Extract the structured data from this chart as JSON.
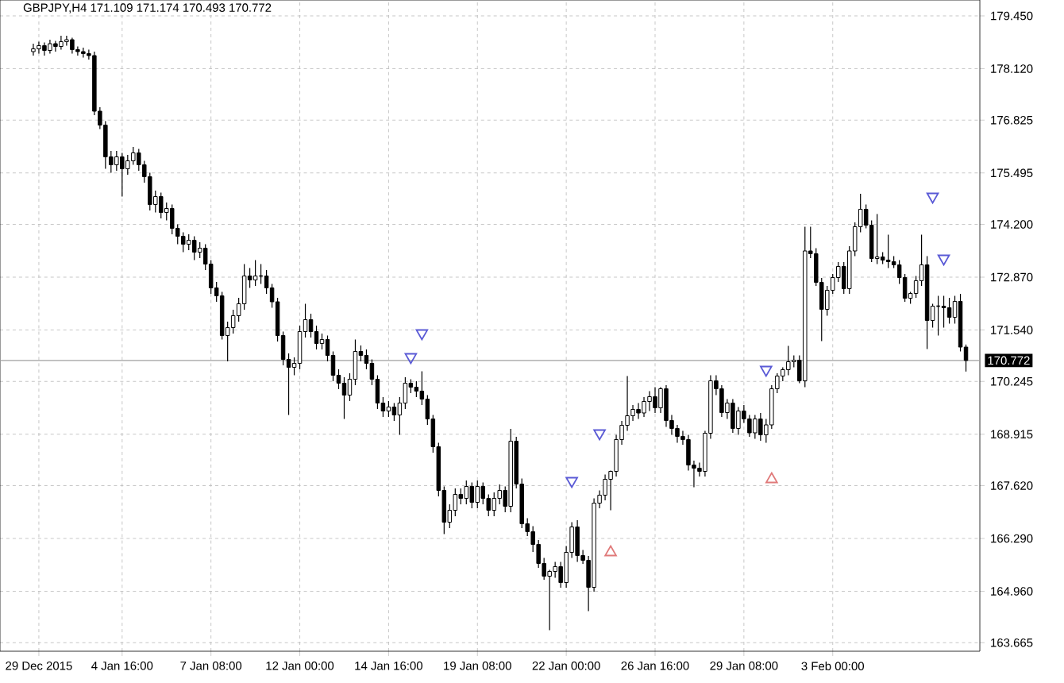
{
  "chart_data": {
    "type": "candlestick",
    "title": "GBPJPY,H4 171.109 171.174 170.493 170.772",
    "categories": [
      null,
      "29 Dec 2015",
      null,
      null,
      null,
      null,
      null,
      null,
      null,
      null,
      null,
      null,
      null,
      null,
      null,
      null,
      "4 Jan 16:00",
      null,
      null,
      null,
      null,
      null,
      null,
      null,
      null,
      null,
      null,
      null,
      null,
      null,
      null,
      null,
      "7 Jan 08:00",
      null,
      null,
      null,
      null,
      null,
      null,
      null,
      null,
      null,
      null,
      null,
      null,
      null,
      null,
      null,
      "12 Jan 00:00",
      null,
      null,
      null,
      null,
      null,
      null,
      null,
      null,
      null,
      null,
      null,
      null,
      null,
      null,
      null,
      "14 Jan 16:00",
      null,
      null,
      null,
      null,
      null,
      null,
      null,
      null,
      null,
      null,
      null,
      null,
      null,
      null,
      null,
      "19 Jan 08:00",
      null,
      null,
      null,
      null,
      null,
      null,
      null,
      null,
      null,
      null,
      null,
      null,
      null,
      null,
      null,
      "22 Jan 00:00",
      null,
      null,
      null,
      null,
      null,
      null,
      null,
      null,
      null,
      null,
      null,
      null,
      null,
      null,
      null,
      "26 Jan 16:00",
      null,
      null,
      null,
      null,
      null,
      null,
      null,
      null,
      null,
      null,
      null,
      null,
      null,
      null,
      null,
      "29 Jan 08:00",
      null,
      null,
      null,
      null,
      null,
      null,
      null,
      null,
      null,
      null,
      null,
      null,
      null,
      null,
      null,
      "3 Feb 00:00",
      null,
      null,
      null,
      null,
      null,
      null,
      null,
      null,
      null,
      null,
      null,
      null,
      null,
      null,
      null,
      null,
      null,
      null,
      null,
      null,
      null,
      null,
      null,
      null
    ],
    "ohlc": [
      [
        178.55,
        178.75,
        178.45,
        178.62
      ],
      [
        178.62,
        178.8,
        178.5,
        178.7
      ],
      [
        178.7,
        178.78,
        178.45,
        178.58
      ],
      [
        178.58,
        178.85,
        178.5,
        178.75
      ],
      [
        178.75,
        178.82,
        178.55,
        178.68
      ],
      [
        178.68,
        178.95,
        178.6,
        178.8
      ],
      [
        178.8,
        178.95,
        178.7,
        178.85
      ],
      [
        178.85,
        178.9,
        178.5,
        178.6
      ],
      [
        178.6,
        178.68,
        178.45,
        178.55
      ],
      [
        178.55,
        178.65,
        178.4,
        178.5
      ],
      [
        178.5,
        178.6,
        178.35,
        178.45
      ],
      [
        178.45,
        178.55,
        176.95,
        177.05
      ],
      [
        177.05,
        177.15,
        176.6,
        176.7
      ],
      [
        176.7,
        176.8,
        175.6,
        175.9
      ],
      [
        175.9,
        176.05,
        175.5,
        175.7
      ],
      [
        175.7,
        176.05,
        175.55,
        175.9
      ],
      [
        175.9,
        176.0,
        174.9,
        175.6
      ],
      [
        175.6,
        175.95,
        175.45,
        175.8
      ],
      [
        175.8,
        176.15,
        175.7,
        176.0
      ],
      [
        176.0,
        176.1,
        175.55,
        175.7
      ],
      [
        175.7,
        175.8,
        175.25,
        175.4
      ],
      [
        175.4,
        175.5,
        174.55,
        174.7
      ],
      [
        174.7,
        175.05,
        174.5,
        174.9
      ],
      [
        174.9,
        175.0,
        174.35,
        174.5
      ],
      [
        174.5,
        174.75,
        174.3,
        174.6
      ],
      [
        174.6,
        174.7,
        173.95,
        174.1
      ],
      [
        174.1,
        174.2,
        173.7,
        173.9
      ],
      [
        173.9,
        174.0,
        173.5,
        173.7
      ],
      [
        173.7,
        173.95,
        173.55,
        173.8
      ],
      [
        173.8,
        173.9,
        173.3,
        173.5
      ],
      [
        173.5,
        173.75,
        173.35,
        173.6
      ],
      [
        173.6,
        173.7,
        173.05,
        173.2
      ],
      [
        173.2,
        173.3,
        172.45,
        172.6
      ],
      [
        172.6,
        172.75,
        172.25,
        172.4
      ],
      [
        172.4,
        172.5,
        171.3,
        171.4
      ],
      [
        171.4,
        171.75,
        170.75,
        171.6
      ],
      [
        171.6,
        172.05,
        171.45,
        171.9
      ],
      [
        171.9,
        172.35,
        171.75,
        172.2
      ],
      [
        172.2,
        173.2,
        172.05,
        172.9
      ],
      [
        172.9,
        173.1,
        172.6,
        172.8
      ],
      [
        172.8,
        173.3,
        172.65,
        172.9
      ],
      [
        172.9,
        173.2,
        172.7,
        172.9
      ],
      [
        172.9,
        173.05,
        172.45,
        172.6
      ],
      [
        172.6,
        172.7,
        172.1,
        172.25
      ],
      [
        172.25,
        172.35,
        171.25,
        171.4
      ],
      [
        171.4,
        171.5,
        170.65,
        170.8
      ],
      [
        170.8,
        170.95,
        169.4,
        170.6
      ],
      [
        170.6,
        170.85,
        170.4,
        170.7
      ],
      [
        170.7,
        171.65,
        170.55,
        171.5
      ],
      [
        171.5,
        172.2,
        171.35,
        171.8
      ],
      [
        171.8,
        171.95,
        171.35,
        171.5
      ],
      [
        171.5,
        171.65,
        171.05,
        171.2
      ],
      [
        171.2,
        171.45,
        171.05,
        171.3
      ],
      [
        171.3,
        171.4,
        170.75,
        170.9
      ],
      [
        170.9,
        171.0,
        170.25,
        170.4
      ],
      [
        170.4,
        170.55,
        170.05,
        170.2
      ],
      [
        170.2,
        170.35,
        169.3,
        169.9
      ],
      [
        169.9,
        170.45,
        169.75,
        170.3
      ],
      [
        170.3,
        171.3,
        170.15,
        171.0
      ],
      [
        171.0,
        171.15,
        170.75,
        170.9
      ],
      [
        170.9,
        171.05,
        170.55,
        170.7
      ],
      [
        170.7,
        170.8,
        170.15,
        170.3
      ],
      [
        170.3,
        170.4,
        169.55,
        169.7
      ],
      [
        169.7,
        169.85,
        169.35,
        169.5
      ],
      [
        169.5,
        169.75,
        169.35,
        169.6
      ],
      [
        169.6,
        169.7,
        169.25,
        169.4
      ],
      [
        169.4,
        169.85,
        168.9,
        169.7
      ],
      [
        169.7,
        170.35,
        169.55,
        170.2
      ],
      [
        170.2,
        170.3,
        169.95,
        170.1
      ],
      [
        170.1,
        170.25,
        169.85,
        170.0
      ],
      [
        170.0,
        170.5,
        169.65,
        169.8
      ],
      [
        169.8,
        169.9,
        169.15,
        169.3
      ],
      [
        169.3,
        169.4,
        168.45,
        168.6
      ],
      [
        168.6,
        168.7,
        167.35,
        167.5
      ],
      [
        167.5,
        167.6,
        166.4,
        166.7
      ],
      [
        166.7,
        167.15,
        166.55,
        167.0
      ],
      [
        167.0,
        167.55,
        166.85,
        167.4
      ],
      [
        167.4,
        167.55,
        167.15,
        167.3
      ],
      [
        167.3,
        167.75,
        167.15,
        167.6
      ],
      [
        167.6,
        167.7,
        167.05,
        167.2
      ],
      [
        167.2,
        167.75,
        167.05,
        167.6
      ],
      [
        167.6,
        167.7,
        167.15,
        167.3
      ],
      [
        167.3,
        167.4,
        166.85,
        167.0
      ],
      [
        167.0,
        167.45,
        166.85,
        167.3
      ],
      [
        167.3,
        167.65,
        167.15,
        167.5
      ],
      [
        167.5,
        167.6,
        166.95,
        167.1
      ],
      [
        167.1,
        169.05,
        166.95,
        168.74
      ],
      [
        168.74,
        168.85,
        167.55,
        167.66
      ],
      [
        167.66,
        167.8,
        166.55,
        166.66
      ],
      [
        166.66,
        166.8,
        166.35,
        166.46
      ],
      [
        166.46,
        166.6,
        165.95,
        166.14
      ],
      [
        166.14,
        166.25,
        165.55,
        165.66
      ],
      [
        165.66,
        165.8,
        165.25,
        165.34
      ],
      [
        165.34,
        165.5,
        163.98,
        165.46
      ],
      [
        165.46,
        165.7,
        165.3,
        165.58
      ],
      [
        165.58,
        165.7,
        165.05,
        165.18
      ],
      [
        165.18,
        166.1,
        165.05,
        165.94
      ],
      [
        165.94,
        166.7,
        165.8,
        166.58
      ],
      [
        166.58,
        166.75,
        165.7,
        165.86
      ],
      [
        165.86,
        166.0,
        165.65,
        165.74
      ],
      [
        165.74,
        165.85,
        164.46,
        165.06
      ],
      [
        165.06,
        167.3,
        164.95,
        167.18
      ],
      [
        167.18,
        167.5,
        167.05,
        167.38
      ],
      [
        167.38,
        167.9,
        167.25,
        167.78
      ],
      [
        167.78,
        168.0,
        167.0,
        167.98
      ],
      [
        167.98,
        168.9,
        167.85,
        168.78
      ],
      [
        168.78,
        169.25,
        168.65,
        169.14
      ],
      [
        169.14,
        170.38,
        169.0,
        169.38
      ],
      [
        169.38,
        169.65,
        169.25,
        169.54
      ],
      [
        169.54,
        169.7,
        169.3,
        169.45
      ],
      [
        169.45,
        169.85,
        169.35,
        169.74
      ],
      [
        169.74,
        170.0,
        169.5,
        169.86
      ],
      [
        169.86,
        170.1,
        169.45,
        169.58
      ],
      [
        169.58,
        170.1,
        169.45,
        170.06
      ],
      [
        170.06,
        170.15,
        169.1,
        169.26
      ],
      [
        169.26,
        169.4,
        168.9,
        169.06
      ],
      [
        169.06,
        169.15,
        168.7,
        168.86
      ],
      [
        168.86,
        169.0,
        168.65,
        168.78
      ],
      [
        168.78,
        168.9,
        168.0,
        168.14
      ],
      [
        168.14,
        168.25,
        167.58,
        168.06
      ],
      [
        168.06,
        168.2,
        167.85,
        167.98
      ],
      [
        167.98,
        169.0,
        167.85,
        168.94
      ],
      [
        168.94,
        170.4,
        168.8,
        170.26
      ],
      [
        170.26,
        170.4,
        169.9,
        170.06
      ],
      [
        170.06,
        170.15,
        169.35,
        169.46
      ],
      [
        169.46,
        169.8,
        169.3,
        169.7
      ],
      [
        169.7,
        169.8,
        168.95,
        169.06
      ],
      [
        169.06,
        169.6,
        168.9,
        169.5
      ],
      [
        169.5,
        169.65,
        169.2,
        169.3
      ],
      [
        169.3,
        169.4,
        168.85,
        168.95
      ],
      [
        168.95,
        169.4,
        168.8,
        169.3
      ],
      [
        169.3,
        169.45,
        168.75,
        168.9
      ],
      [
        168.9,
        169.3,
        168.7,
        169.15
      ],
      [
        169.15,
        170.15,
        169.05,
        170.06
      ],
      [
        170.06,
        170.45,
        169.95,
        170.38
      ],
      [
        170.38,
        170.6,
        170.25,
        170.54
      ],
      [
        170.54,
        171.14,
        170.4,
        170.74
      ],
      [
        170.74,
        170.9,
        170.6,
        170.78
      ],
      [
        170.78,
        170.9,
        170.2,
        170.26
      ],
      [
        170.26,
        174.14,
        170.1,
        173.53
      ],
      [
        173.53,
        174.14,
        173.35,
        173.46
      ],
      [
        173.46,
        173.6,
        172.65,
        172.74
      ],
      [
        172.74,
        172.85,
        171.26,
        172.06
      ],
      [
        172.06,
        172.65,
        171.9,
        172.54
      ],
      [
        172.54,
        172.95,
        172.45,
        172.86
      ],
      [
        172.86,
        173.25,
        172.75,
        173.14
      ],
      [
        173.14,
        173.25,
        172.45,
        172.58
      ],
      [
        172.58,
        173.65,
        172.45,
        173.53
      ],
      [
        173.53,
        174.25,
        173.4,
        174.14
      ],
      [
        174.14,
        174.97,
        174.0,
        174.58
      ],
      [
        174.58,
        174.7,
        174.1,
        174.18
      ],
      [
        174.18,
        174.3,
        173.25,
        173.34
      ],
      [
        173.34,
        174.46,
        173.2,
        173.38
      ],
      [
        173.38,
        173.5,
        173.2,
        173.3
      ],
      [
        173.3,
        173.94,
        173.1,
        173.26
      ],
      [
        173.26,
        173.4,
        173.1,
        173.18
      ],
      [
        173.18,
        173.3,
        172.7,
        172.86
      ],
      [
        172.86,
        172.95,
        172.25,
        172.34
      ],
      [
        172.34,
        172.5,
        172.2,
        172.46
      ],
      [
        172.46,
        172.9,
        172.35,
        172.78
      ],
      [
        172.78,
        173.94,
        172.65,
        173.18
      ],
      [
        173.18,
        173.4,
        171.06,
        171.78
      ],
      [
        171.78,
        172.2,
        171.6,
        172.14
      ],
      [
        172.14,
        172.4,
        171.4,
        172.14
      ],
      [
        172.14,
        172.4,
        171.6,
        172.1
      ],
      [
        172.1,
        172.35,
        171.7,
        171.86
      ],
      [
        171.86,
        172.4,
        171.7,
        172.26
      ],
      [
        172.26,
        172.45,
        171.0,
        171.11
      ],
      [
        171.109,
        171.174,
        170.493,
        170.772
      ]
    ],
    "series": [
      {
        "type": "scatter",
        "color": "#5a5ad6",
        "values": [
          null,
          null,
          null,
          null,
          null,
          null,
          null,
          null,
          null,
          null,
          null,
          null,
          null,
          null,
          null,
          null,
          null,
          null,
          null,
          null,
          null,
          null,
          null,
          null,
          null,
          null,
          null,
          null,
          null,
          null,
          null,
          null,
          null,
          null,
          null,
          null,
          null,
          null,
          null,
          null,
          null,
          null,
          null,
          null,
          null,
          null,
          null,
          null,
          null,
          null,
          null,
          null,
          null,
          null,
          null,
          null,
          null,
          null,
          null,
          null,
          null,
          null,
          null,
          null,
          null,
          null,
          null,
          null,
          170.86,
          null,
          171.46,
          null,
          null,
          null,
          null,
          null,
          null,
          null,
          null,
          null,
          null,
          null,
          null,
          null,
          null,
          null,
          null,
          null,
          null,
          null,
          null,
          null,
          null,
          null,
          null,
          null,
          null,
          167.74,
          null,
          null,
          null,
          null,
          168.94,
          null,
          null,
          null,
          null,
          null,
          null,
          null,
          null,
          null,
          null,
          null,
          null,
          null,
          null,
          null,
          null,
          null,
          null,
          null,
          null,
          null,
          null,
          null,
          null,
          null,
          null,
          null,
          null,
          null,
          170.54,
          null,
          null,
          null,
          null,
          null,
          null,
          null,
          null,
          null,
          null,
          null,
          null,
          null,
          null,
          null,
          null,
          null,
          null,
          null,
          null,
          null,
          null,
          null,
          null,
          null,
          null,
          null,
          null,
          null,
          174.9,
          null,
          173.34,
          null,
          null,
          null,
          null
        ]
      },
      {
        "type": "scatter",
        "color": "#e07a7a",
        "values": [
          null,
          null,
          null,
          null,
          null,
          null,
          null,
          null,
          null,
          null,
          null,
          null,
          null,
          null,
          null,
          null,
          null,
          null,
          null,
          null,
          null,
          null,
          null,
          null,
          null,
          null,
          null,
          null,
          null,
          null,
          null,
          null,
          null,
          null,
          null,
          null,
          null,
          null,
          null,
          null,
          null,
          null,
          null,
          null,
          null,
          null,
          null,
          null,
          null,
          null,
          null,
          null,
          null,
          null,
          null,
          null,
          null,
          null,
          null,
          null,
          null,
          null,
          null,
          null,
          null,
          null,
          null,
          null,
          null,
          null,
          null,
          null,
          null,
          null,
          null,
          null,
          null,
          null,
          null,
          null,
          null,
          null,
          null,
          null,
          null,
          null,
          null,
          null,
          null,
          null,
          null,
          null,
          null,
          null,
          null,
          null,
          null,
          null,
          null,
          null,
          null,
          null,
          null,
          null,
          165.94,
          null,
          null,
          null,
          null,
          null,
          null,
          null,
          null,
          null,
          null,
          null,
          null,
          null,
          null,
          null,
          null,
          null,
          null,
          null,
          null,
          null,
          null,
          null,
          null,
          null,
          null,
          null,
          null,
          167.78,
          null,
          null,
          null,
          null,
          null,
          null,
          null,
          null,
          null,
          null,
          null,
          null,
          null,
          null,
          null,
          null,
          null,
          null,
          null,
          null,
          null,
          null,
          null,
          null,
          null,
          null,
          null,
          null,
          null,
          null,
          null,
          null,
          null,
          null,
          null
        ]
      }
    ],
    "marker": "triangle",
    "ylim": [
      163.45,
      179.85
    ],
    "yticks": [
      {
        "value": 179.45,
        "label": "179.450"
      },
      {
        "value": 178.12,
        "label": "178.120"
      },
      {
        "value": 176.825,
        "label": "176.825"
      },
      {
        "value": 175.495,
        "label": "175.495"
      },
      {
        "value": 174.2,
        "label": "174.200"
      },
      {
        "value": 172.87,
        "label": "172.870"
      },
      {
        "value": 171.54,
        "label": "171.540"
      },
      {
        "value": 170.245,
        "label": "170.245"
      },
      {
        "value": 168.915,
        "label": "168.915"
      },
      {
        "value": 167.62,
        "label": "167.620"
      },
      {
        "value": 166.29,
        "label": "166.290"
      },
      {
        "value": 164.96,
        "label": "164.960"
      },
      {
        "value": 163.665,
        "label": "163.665"
      }
    ],
    "ref_lines": [
      {
        "axis": "y",
        "value": 170.772,
        "label": "170.772",
        "color": "#a0a0a0"
      }
    ],
    "grid": true
  }
}
